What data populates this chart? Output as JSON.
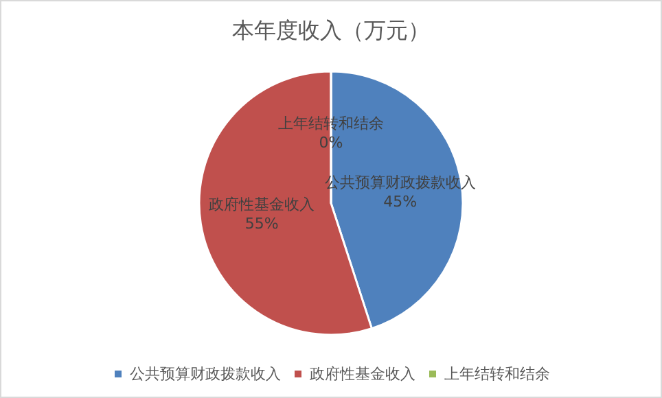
{
  "chart_data": {
    "type": "pie",
    "title": "本年度收入（万元）",
    "categories": [
      "公共预算财政拨款收入",
      "政府性基金收入",
      "上年结转和结余"
    ],
    "values": [
      45,
      55,
      0
    ],
    "colors": [
      "#4f81bd",
      "#c0504d",
      "#9bbb59"
    ],
    "value_labels": [
      "45%",
      "55%",
      "0%"
    ],
    "legend": "bottom"
  }
}
